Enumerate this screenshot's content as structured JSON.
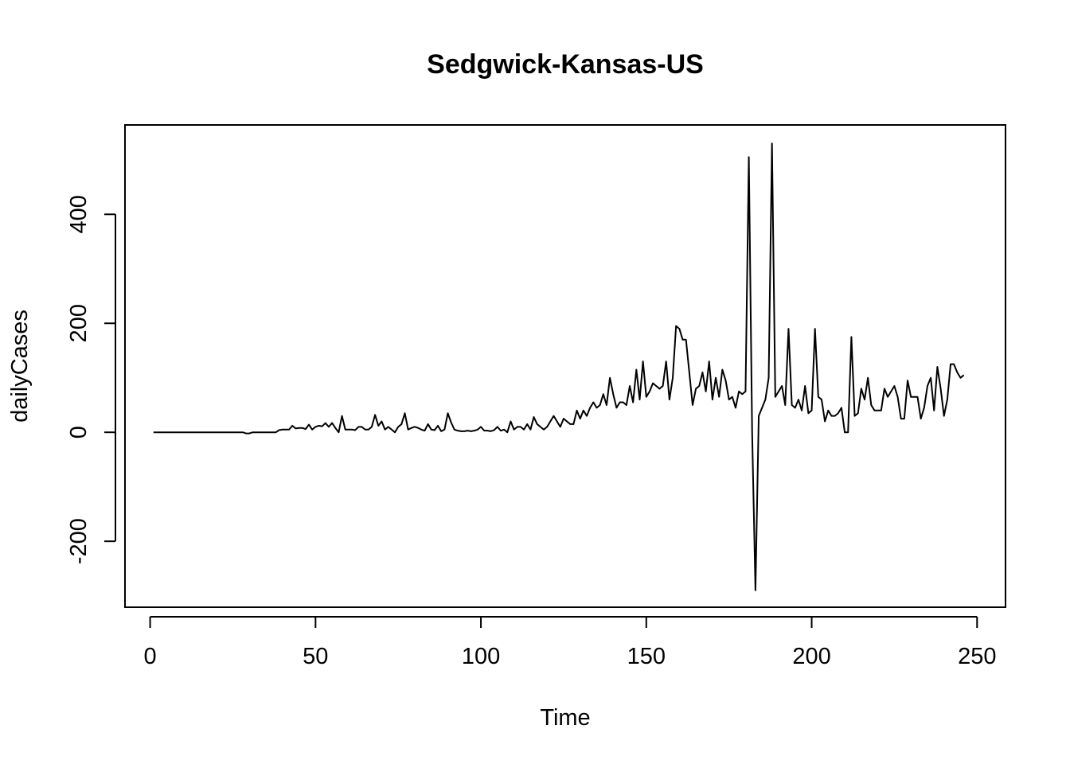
{
  "chart_data": {
    "type": "line",
    "title": "Sedgwick-Kansas-US",
    "xlabel": "Time",
    "ylabel": "dailyCases",
    "xlim": [
      -7.6,
      258.6
    ],
    "ylim": [
      -321,
      564
    ],
    "x_ticks": [
      0,
      50,
      100,
      150,
      200,
      250
    ],
    "y_ticks": [
      -200,
      0,
      200,
      400
    ],
    "x_tick_labels": [
      "0",
      "50",
      "100",
      "150",
      "200",
      "250"
    ],
    "y_tick_labels": [
      "-200",
      "0",
      "200",
      "400"
    ],
    "grid": false,
    "line_color": "#000000",
    "series": [
      {
        "x_start": 1,
        "values": [
          0,
          0,
          0,
          0,
          0,
          0,
          0,
          0,
          0,
          0,
          0,
          0,
          0,
          0,
          0,
          0,
          0,
          0,
          0,
          0,
          0,
          0,
          0,
          0,
          0,
          0,
          0,
          0,
          -2,
          -2,
          0,
          0,
          0,
          0,
          0,
          0,
          0,
          0,
          4,
          5,
          5,
          5,
          12,
          7,
          8,
          8,
          6,
          14,
          5,
          10,
          12,
          11,
          17,
          10,
          17,
          8,
          0,
          30,
          5,
          5,
          5,
          4,
          10,
          10,
          5,
          5,
          10,
          32,
          12,
          20,
          5,
          10,
          5,
          0,
          10,
          15,
          35,
          5,
          8,
          10,
          8,
          5,
          3,
          15,
          5,
          4,
          12,
          2,
          5,
          35,
          18,
          5,
          3,
          2,
          2,
          3,
          2,
          3,
          5,
          10,
          3,
          3,
          2,
          4,
          10,
          3,
          5,
          0,
          20,
          5,
          10,
          10,
          5,
          15,
          5,
          28,
          15,
          10,
          5,
          10,
          20,
          30,
          20,
          10,
          25,
          20,
          15,
          15,
          40,
          25,
          40,
          30,
          45,
          55,
          45,
          50,
          70,
          50,
          100,
          70,
          45,
          55,
          55,
          50,
          85,
          55,
          115,
          60,
          130,
          65,
          75,
          90,
          85,
          80,
          85,
          130,
          60,
          100,
          195,
          190,
          170,
          170,
          110,
          50,
          80,
          85,
          110,
          75,
          130,
          60,
          100,
          65,
          115,
          95,
          60,
          65,
          45,
          75,
          70,
          75,
          505,
          0,
          -290,
          30,
          45,
          60,
          100,
          530,
          65,
          75,
          85,
          50,
          190,
          50,
          45,
          60,
          40,
          85,
          35,
          40,
          190,
          65,
          60,
          20,
          40,
          30,
          30,
          35,
          45,
          0,
          0,
          175,
          30,
          35,
          80,
          60,
          100,
          50,
          40,
          40,
          40,
          80,
          65,
          75,
          85,
          65,
          25,
          25,
          95,
          65,
          65,
          65,
          25,
          45,
          85,
          100,
          40,
          120,
          80,
          30,
          60,
          125,
          125,
          110,
          100,
          105
        ]
      }
    ]
  }
}
